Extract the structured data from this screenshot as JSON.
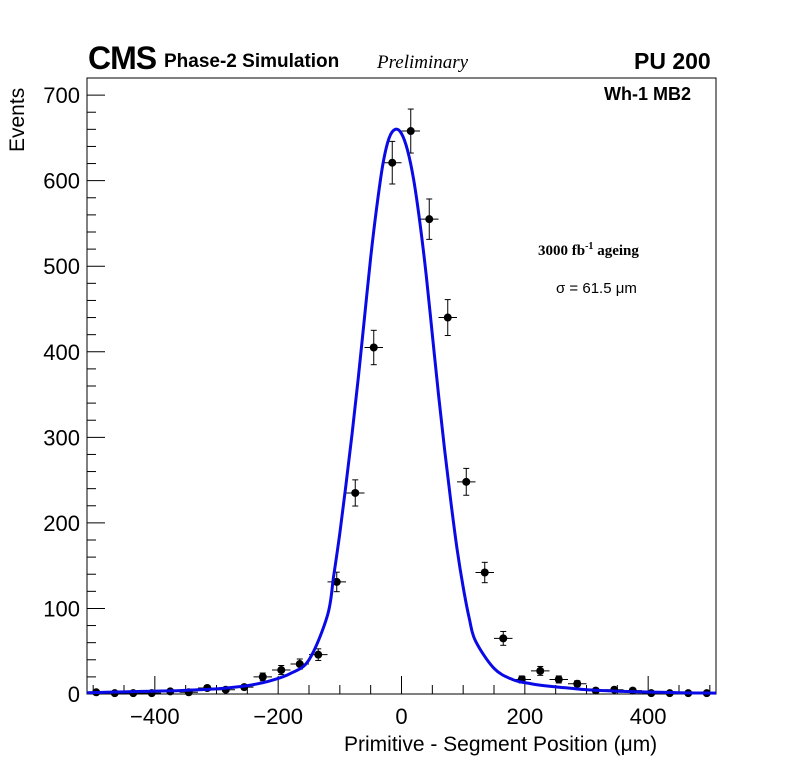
{
  "header": {
    "experiment": "CMS",
    "subtitle": "Phase-2 Simulation",
    "status": "Preliminary",
    "pileup": "PU 200"
  },
  "chart_data": {
    "type": "scatter",
    "title": "",
    "xlabel": "Primitive - Segment Position (μm)",
    "ylabel": "Events",
    "xlim": [
      -510,
      510
    ],
    "ylim": [
      0,
      720
    ],
    "x_ticks": [
      -400,
      -200,
      0,
      200,
      400
    ],
    "x_tick_labels": [
      "−400",
      "−200",
      "0",
      "200",
      "400"
    ],
    "y_ticks": [
      0,
      100,
      200,
      300,
      400,
      500,
      600,
      700
    ],
    "y_tick_labels": [
      "0",
      "100",
      "200",
      "300",
      "400",
      "500",
      "600",
      "700"
    ],
    "region_label": "Wh-1 MB2",
    "ageing_label": "3000 fb",
    "ageing_exponent": "-1",
    "ageing_suffix": " ageing",
    "fit_label": "σ = 61.5 μm",
    "marker_color": "#000000",
    "fit_color": "#0a0ae6",
    "series": [
      {
        "name": "data",
        "bin_half_width": 15,
        "x": [
          -495,
          -465,
          -435,
          -405,
          -375,
          -345,
          -315,
          -285,
          -255,
          -225,
          -195,
          -165,
          -135,
          -105,
          -75,
          -45,
          -15,
          15,
          45,
          75,
          105,
          135,
          165,
          195,
          225,
          255,
          285,
          315,
          345,
          375,
          405,
          435,
          465,
          495
        ],
        "y": [
          2,
          1,
          1,
          1,
          3,
          2,
          7,
          5,
          8,
          20,
          28,
          35,
          46,
          131,
          235,
          405,
          621,
          658,
          555,
          440,
          248,
          142,
          65,
          17,
          27,
          17,
          12,
          4,
          5,
          4,
          1,
          1,
          1,
          1
        ],
        "yerr": [
          1.4,
          1,
          1,
          1,
          1.7,
          1.4,
          2.6,
          2.2,
          2.8,
          4.5,
          5.3,
          5.9,
          6.8,
          11.4,
          15.3,
          20.1,
          24.9,
          25.7,
          23.6,
          21,
          15.7,
          11.9,
          8.1,
          4.1,
          5.2,
          4.1,
          3.5,
          2,
          2.2,
          2,
          1,
          1,
          1,
          1
        ]
      },
      {
        "name": "fit",
        "type": "line",
        "model": "gaussian + tails",
        "x": [
          -510,
          -480,
          -450,
          -420,
          -390,
          -360,
          -330,
          -300,
          -270,
          -240,
          -210,
          -180,
          -150,
          -120,
          -110,
          -100,
          -90,
          -80,
          -70,
          -60,
          -50,
          -40,
          -30,
          -20,
          -10,
          0,
          10,
          20,
          30,
          40,
          50,
          60,
          70,
          80,
          90,
          100,
          110,
          120,
          150,
          180,
          210,
          240,
          270,
          300,
          330,
          360,
          390,
          420,
          450,
          480,
          510
        ],
        "y": [
          1.5,
          2,
          2.5,
          3,
          3.5,
          4,
          5,
          6,
          8,
          11,
          16,
          24,
          40,
          92,
          138,
          188,
          245,
          305,
          370,
          440,
          510,
          570,
          620,
          650,
          660,
          655,
          635,
          600,
          550,
          490,
          420,
          350,
          285,
          225,
          170,
          125,
          88,
          62,
          30,
          17,
          12,
          9,
          7,
          5,
          4,
          3,
          2.5,
          2,
          1.5,
          1.2,
          1
        ]
      }
    ]
  }
}
